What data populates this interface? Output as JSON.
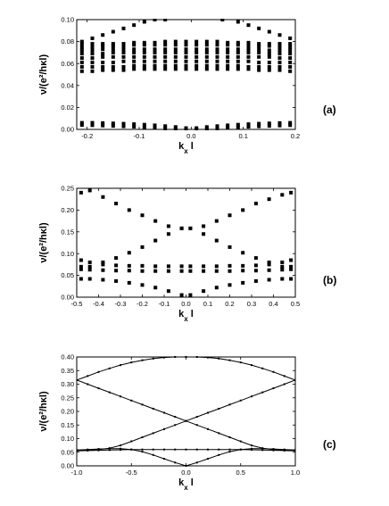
{
  "chart_data": [
    {
      "type": "scatter",
      "panel_label": "(a)",
      "xlabel": "k_x l",
      "ylabel": "ν/(e²/hκl)",
      "xlim": [
        -0.22,
        0.2
      ],
      "ylim": [
        0.0,
        0.1
      ],
      "xticks": [
        -0.2,
        -0.1,
        0.0,
        0.1,
        0.2
      ],
      "xtick_labels": [
        "-0.2",
        "-0.1",
        "0.0",
        "0.1",
        "0.2"
      ],
      "yticks": [
        0.0,
        0.02,
        0.04,
        0.06,
        0.08,
        0.1
      ],
      "ytick_labels": [
        "0.00",
        "0.02",
        "0.04",
        "0.06",
        "0.08",
        "0.10"
      ],
      "grid": false,
      "series": [
        {
          "x": [
            -0.21,
            -0.19,
            -0.17,
            -0.15,
            -0.13,
            -0.11,
            -0.09,
            -0.07,
            -0.05,
            -0.03,
            -0.01,
            0.01,
            0.03,
            0.05,
            0.07,
            0.09,
            0.11,
            0.13,
            0.15,
            0.17,
            0.19
          ],
          "y": [
            0.006,
            0.006,
            0.0058,
            0.0055,
            0.0052,
            0.0048,
            0.0043,
            0.0037,
            0.003,
            0.0022,
            0.0012,
            0.0012,
            0.0022,
            0.003,
            0.0037,
            0.0043,
            0.0048,
            0.0052,
            0.0055,
            0.0058,
            0.006
          ]
        },
        {
          "x": [
            -0.21,
            -0.19,
            -0.17,
            -0.15,
            -0.13,
            -0.11,
            -0.09,
            -0.07,
            -0.05,
            -0.03,
            -0.01,
            0.01,
            0.03,
            0.05,
            0.07,
            0.09,
            0.11,
            0.13,
            0.15,
            0.17,
            0.19
          ],
          "y": [
            0.004,
            0.0038,
            0.0035,
            0.0032,
            0.0028,
            0.0024,
            0.0019,
            0.0014,
            0.0009,
            0.0004,
            0.0001,
            0.0001,
            0.0004,
            0.0009,
            0.0014,
            0.0019,
            0.0024,
            0.0028,
            0.0032,
            0.0035,
            0.0038
          ]
        },
        {
          "x": [
            -0.21,
            -0.19,
            -0.17,
            -0.15,
            -0.13,
            -0.11,
            -0.09,
            -0.07,
            -0.05,
            -0.03,
            -0.01,
            0.01,
            0.03,
            0.05,
            0.07,
            0.09,
            0.11,
            0.13,
            0.15,
            0.17,
            0.19
          ],
          "y": [
            0.053,
            0.053,
            0.054,
            0.054,
            0.054,
            0.055,
            0.055,
            0.055,
            0.055,
            0.055,
            0.055,
            0.055,
            0.055,
            0.055,
            0.055,
            0.055,
            0.055,
            0.054,
            0.054,
            0.054,
            0.053
          ]
        },
        {
          "x": [
            -0.21,
            -0.19,
            -0.17,
            -0.15,
            -0.13,
            -0.11,
            -0.09,
            -0.07,
            -0.05,
            -0.03,
            -0.01,
            0.01,
            0.03,
            0.05,
            0.07,
            0.09,
            0.11,
            0.13,
            0.15,
            0.17,
            0.19
          ],
          "y": [
            0.057,
            0.057,
            0.057,
            0.057,
            0.057,
            0.058,
            0.058,
            0.058,
            0.058,
            0.058,
            0.058,
            0.058,
            0.058,
            0.058,
            0.058,
            0.058,
            0.057,
            0.057,
            0.057,
            0.057,
            0.057
          ]
        },
        {
          "x": [
            -0.21,
            -0.19,
            -0.17,
            -0.15,
            -0.13,
            -0.11,
            -0.09,
            -0.07,
            -0.05,
            -0.03,
            -0.01,
            0.01,
            0.03,
            0.05,
            0.07,
            0.09,
            0.11,
            0.13,
            0.15,
            0.17,
            0.19
          ],
          "y": [
            0.061,
            0.061,
            0.061,
            0.061,
            0.062,
            0.062,
            0.062,
            0.062,
            0.062,
            0.062,
            0.062,
            0.062,
            0.062,
            0.062,
            0.062,
            0.062,
            0.062,
            0.061,
            0.061,
            0.061,
            0.061
          ]
        },
        {
          "x": [
            -0.21,
            -0.19,
            -0.17,
            -0.15,
            -0.13,
            -0.11,
            -0.09,
            -0.07,
            -0.05,
            -0.03,
            -0.01,
            0.01,
            0.03,
            0.05,
            0.07,
            0.09,
            0.11,
            0.13,
            0.15,
            0.17,
            0.19
          ],
          "y": [
            0.065,
            0.065,
            0.066,
            0.066,
            0.066,
            0.066,
            0.066,
            0.066,
            0.066,
            0.066,
            0.066,
            0.066,
            0.066,
            0.066,
            0.066,
            0.066,
            0.066,
            0.066,
            0.066,
            0.065,
            0.065
          ]
        },
        {
          "x": [
            -0.21,
            -0.19,
            -0.17,
            -0.15,
            -0.13,
            -0.11,
            -0.09,
            -0.07,
            -0.05,
            -0.03,
            -0.01,
            0.01,
            0.03,
            0.05,
            0.07,
            0.09,
            0.11,
            0.13,
            0.15,
            0.17,
            0.19
          ],
          "y": [
            0.069,
            0.069,
            0.069,
            0.07,
            0.07,
            0.07,
            0.07,
            0.07,
            0.07,
            0.07,
            0.07,
            0.07,
            0.07,
            0.07,
            0.07,
            0.07,
            0.07,
            0.07,
            0.069,
            0.069,
            0.069
          ]
        },
        {
          "x": [
            -0.21,
            -0.19,
            -0.17,
            -0.15,
            -0.13,
            -0.11,
            -0.09,
            -0.07,
            -0.05,
            -0.03,
            -0.01,
            0.01,
            0.03,
            0.05,
            0.07,
            0.09,
            0.11,
            0.13,
            0.15,
            0.17,
            0.19
          ],
          "y": [
            0.072,
            0.072,
            0.073,
            0.073,
            0.073,
            0.073,
            0.073,
            0.073,
            0.073,
            0.073,
            0.073,
            0.073,
            0.073,
            0.073,
            0.073,
            0.073,
            0.073,
            0.073,
            0.072,
            0.072,
            0.072
          ]
        },
        {
          "x": [
            -0.21,
            -0.19,
            -0.17,
            -0.15,
            -0.13,
            -0.11,
            -0.09,
            -0.07,
            -0.05,
            -0.03,
            -0.01,
            0.01,
            0.03,
            0.05,
            0.07,
            0.09,
            0.11,
            0.13,
            0.15,
            0.17,
            0.19
          ],
          "y": [
            0.075,
            0.075,
            0.076,
            0.076,
            0.076,
            0.077,
            0.077,
            0.077,
            0.077,
            0.077,
            0.077,
            0.077,
            0.077,
            0.077,
            0.077,
            0.077,
            0.076,
            0.076,
            0.076,
            0.075,
            0.075
          ]
        },
        {
          "x": [
            -0.21,
            -0.19,
            -0.17,
            -0.15,
            -0.13,
            -0.11,
            -0.09,
            -0.07,
            -0.05,
            -0.03,
            -0.01,
            0.01,
            0.03,
            0.05,
            0.07,
            0.09,
            0.11,
            0.13,
            0.15,
            0.17,
            0.19
          ],
          "y": [
            0.078,
            0.078,
            0.078,
            0.078,
            0.078,
            0.079,
            0.079,
            0.079,
            0.08,
            0.08,
            0.08,
            0.08,
            0.08,
            0.08,
            0.079,
            0.079,
            0.079,
            0.078,
            0.078,
            0.078,
            0.078
          ]
        },
        {
          "x": [
            -0.21,
            -0.19,
            -0.17,
            -0.15,
            -0.13,
            -0.11,
            -0.09,
            -0.07,
            -0.05
          ],
          "y": [
            0.08,
            0.083,
            0.086,
            0.089,
            0.092,
            0.095,
            0.098,
            0.1,
            0.1
          ]
        },
        {
          "x": [
            0.06,
            0.09,
            0.11,
            0.13,
            0.15,
            0.17,
            0.19
          ],
          "y": [
            0.1,
            0.098,
            0.095,
            0.092,
            0.089,
            0.086,
            0.083
          ]
        }
      ]
    },
    {
      "type": "scatter",
      "panel_label": "(b)",
      "xlabel": "k_x l",
      "ylabel": "ν/(e²/hκl)",
      "xlim": [
        -0.5,
        0.5
      ],
      "ylim": [
        0.0,
        0.25
      ],
      "xticks": [
        -0.5,
        -0.4,
        -0.3,
        -0.2,
        -0.1,
        0.0,
        0.1,
        0.2,
        0.3,
        0.4,
        0.5
      ],
      "xtick_labels": [
        "-0.5",
        "-0.4",
        "-0.3",
        "-0.2",
        "-0.1",
        "0.0",
        "0.1",
        "0.2",
        "0.3",
        "0.4",
        "0.5"
      ],
      "yticks": [
        0.0,
        0.05,
        0.1,
        0.15,
        0.2,
        0.25
      ],
      "ytick_labels": [
        "0.00",
        "0.05",
        "0.10",
        "0.15",
        "0.20",
        "0.25"
      ],
      "grid": false,
      "series": [
        {
          "x": [
            -0.48,
            -0.44,
            -0.38,
            -0.32,
            -0.26,
            -0.2,
            -0.14,
            -0.08,
            -0.02,
            0.02,
            0.08,
            0.14,
            0.2,
            0.26,
            0.32,
            0.38,
            0.44,
            0.48
          ],
          "y": [
            0.24,
            0.245,
            0.23,
            0.215,
            0.2,
            0.188,
            0.175,
            0.163,
            0.158,
            0.158,
            0.163,
            0.175,
            0.188,
            0.2,
            0.215,
            0.225,
            0.235,
            0.24
          ]
        },
        {
          "x": [
            -0.48,
            -0.44,
            -0.38,
            -0.32,
            -0.26,
            -0.2,
            -0.14,
            -0.08,
            -0.02,
            0.02,
            0.08,
            0.14,
            0.2,
            0.26,
            0.32,
            0.38,
            0.44,
            0.48
          ],
          "y": [
            0.07,
            0.07,
            0.08,
            0.09,
            0.102,
            0.115,
            0.13,
            0.145,
            0.158,
            0.158,
            0.145,
            0.13,
            0.115,
            0.102,
            0.09,
            0.08,
            0.07,
            0.07
          ]
        },
        {
          "x": [
            -0.48,
            -0.44,
            -0.38,
            -0.32,
            -0.26,
            -0.2,
            -0.14,
            -0.08,
            -0.02,
            0.02,
            0.08,
            0.14,
            0.2,
            0.26,
            0.32,
            0.38,
            0.44,
            0.48
          ],
          "y": [
            0.085,
            0.08,
            0.075,
            0.073,
            0.072,
            0.072,
            0.071,
            0.071,
            0.071,
            0.071,
            0.071,
            0.071,
            0.072,
            0.072,
            0.073,
            0.075,
            0.08,
            0.085
          ]
        },
        {
          "x": [
            -0.48,
            -0.44,
            -0.38,
            -0.32,
            -0.26,
            -0.2,
            -0.14,
            -0.08,
            -0.02,
            0.02,
            0.08,
            0.14,
            0.2,
            0.26,
            0.32,
            0.38,
            0.44,
            0.48
          ],
          "y": [
            0.064,
            0.063,
            0.062,
            0.061,
            0.061,
            0.06,
            0.06,
            0.06,
            0.06,
            0.06,
            0.06,
            0.06,
            0.06,
            0.061,
            0.061,
            0.062,
            0.063,
            0.064
          ]
        },
        {
          "x": [
            -0.48,
            -0.44,
            -0.38,
            -0.32,
            -0.26,
            -0.2,
            -0.14,
            -0.08,
            -0.02,
            0.02,
            0.08,
            0.14,
            0.2,
            0.26,
            0.32,
            0.38,
            0.44,
            0.48
          ],
          "y": [
            0.042,
            0.042,
            0.04,
            0.037,
            0.033,
            0.028,
            0.022,
            0.014,
            0.005,
            0.005,
            0.014,
            0.022,
            0.028,
            0.033,
            0.037,
            0.04,
            0.042,
            0.042
          ]
        }
      ]
    },
    {
      "type": "line",
      "panel_label": "(c)",
      "xlabel": "k_x l",
      "ylabel": "ν/(e²/hκl)",
      "xlim": [
        -1.0,
        1.0
      ],
      "ylim": [
        0.0,
        0.4
      ],
      "xticks": [
        -1.0,
        -0.5,
        0.0,
        0.5,
        1.0
      ],
      "xtick_labels": [
        "-1.0",
        "-0.5",
        "0.0",
        "0.5",
        "1.0"
      ],
      "yticks": [
        0.0,
        0.05,
        0.1,
        0.15,
        0.2,
        0.25,
        0.3,
        0.35,
        0.4
      ],
      "ytick_labels": [
        "0.00",
        "0.05",
        "0.10",
        "0.15",
        "0.20",
        "0.25",
        "0.30",
        "0.35",
        "0.40"
      ],
      "grid": false,
      "series": [
        {
          "x": [
            -1.0,
            -0.9,
            -0.8,
            -0.7,
            -0.6,
            -0.5,
            -0.4,
            -0.3,
            -0.2,
            -0.1,
            0.0,
            0.1,
            0.2,
            0.3,
            0.4,
            0.5,
            0.6,
            0.7,
            0.8,
            0.9,
            1.0
          ],
          "y": [
            0.315,
            0.33,
            0.345,
            0.358,
            0.37,
            0.38,
            0.388,
            0.394,
            0.398,
            0.4,
            0.4,
            0.4,
            0.398,
            0.394,
            0.388,
            0.38,
            0.37,
            0.358,
            0.345,
            0.33,
            0.315
          ]
        },
        {
          "x": [
            -1.0,
            -0.9,
            -0.8,
            -0.7,
            -0.6,
            -0.5,
            -0.4,
            -0.3,
            -0.2,
            -0.1,
            0.0,
            0.1,
            0.2,
            0.3,
            0.4,
            0.5,
            0.6,
            0.7,
            0.8,
            0.9,
            1.0
          ],
          "y": [
            0.315,
            0.3,
            0.285,
            0.27,
            0.255,
            0.24,
            0.225,
            0.21,
            0.195,
            0.18,
            0.165,
            0.15,
            0.135,
            0.12,
            0.105,
            0.09,
            0.075,
            0.065,
            0.06,
            0.058,
            0.058
          ]
        },
        {
          "x": [
            -1.0,
            -0.9,
            -0.8,
            -0.7,
            -0.6,
            -0.5,
            -0.4,
            -0.3,
            -0.2,
            -0.1,
            0.0,
            0.1,
            0.2,
            0.3,
            0.4,
            0.5,
            0.6,
            0.7,
            0.8,
            0.9,
            1.0
          ],
          "y": [
            0.058,
            0.058,
            0.06,
            0.065,
            0.075,
            0.09,
            0.105,
            0.12,
            0.135,
            0.15,
            0.165,
            0.18,
            0.195,
            0.21,
            0.225,
            0.24,
            0.255,
            0.27,
            0.285,
            0.3,
            0.315
          ]
        },
        {
          "x": [
            -1.0,
            -0.9,
            -0.8,
            -0.7,
            -0.6,
            -0.5,
            -0.4,
            -0.3,
            -0.2,
            -0.1,
            0.0,
            0.1,
            0.2,
            0.3,
            0.4,
            0.5,
            0.6,
            0.7,
            0.8,
            0.9,
            1.0
          ],
          "y": [
            0.058,
            0.06,
            0.062,
            0.063,
            0.063,
            0.06,
            0.052,
            0.04,
            0.026,
            0.012,
            0.0,
            0.012,
            0.026,
            0.04,
            0.052,
            0.06,
            0.063,
            0.063,
            0.062,
            0.06,
            0.058
          ]
        },
        {
          "x": [
            -1.0,
            -0.9,
            -0.8,
            -0.7,
            -0.6,
            -0.5,
            -0.4,
            -0.3,
            -0.2,
            -0.1,
            0.0,
            0.1,
            0.2,
            0.3,
            0.4,
            0.5,
            0.6,
            0.7,
            0.8,
            0.9,
            1.0
          ],
          "y": [
            0.055,
            0.056,
            0.057,
            0.058,
            0.059,
            0.06,
            0.06,
            0.06,
            0.06,
            0.06,
            0.06,
            0.06,
            0.06,
            0.06,
            0.06,
            0.06,
            0.059,
            0.058,
            0.057,
            0.056,
            0.055
          ]
        }
      ]
    }
  ]
}
